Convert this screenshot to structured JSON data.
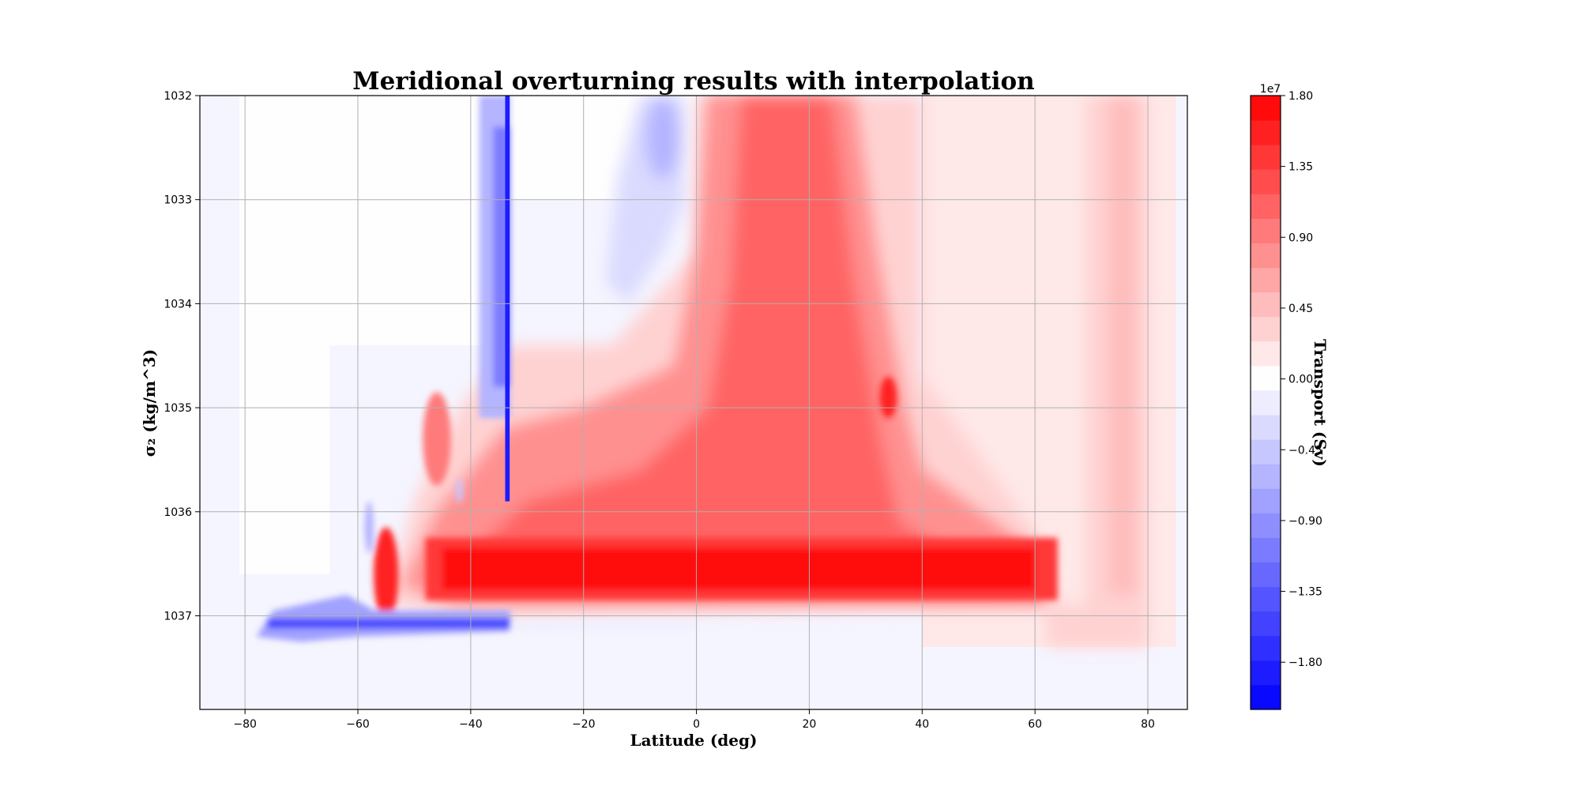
{
  "chart_data": {
    "type": "heatmap",
    "subtype": "filled-contour",
    "title": "Meridional overturning results with interpolation",
    "xlabel": "Latitude (deg)",
    "ylabel": "σ₂ (kg/m^3)",
    "xlim": [
      -88,
      87
    ],
    "ylim": [
      1037.9,
      1032.0
    ],
    "y_inverted": true,
    "x_ticks": [
      -80,
      -60,
      -40,
      -20,
      0,
      20,
      40,
      60,
      80
    ],
    "x_tick_labels": [
      "−80",
      "−60",
      "−40",
      "−20",
      "0",
      "20",
      "40",
      "60",
      "80"
    ],
    "y_ticks": [
      1032,
      1033,
      1034,
      1035,
      1036,
      1037
    ],
    "y_tick_labels": [
      "1032",
      "1033",
      "1034",
      "1035",
      "1036",
      "1037"
    ],
    "grid": true,
    "colormap": "bwr",
    "colorbar": {
      "label": "Transport (Sv)",
      "multiplier": "1e7",
      "min": -2.1,
      "max": 1.8,
      "levels": 25,
      "ticks": [
        1.8,
        1.35,
        0.9,
        0.45,
        0.0,
        -0.45,
        -0.9,
        -1.35,
        -1.8
      ],
      "tick_labels": [
        "1.80",
        "1.35",
        "0.90",
        "0.45",
        "0.00",
        "−0.45",
        "−0.90",
        "−1.35",
        "−1.80"
      ]
    },
    "features": [
      {
        "name": "southern-deep-blue-cell",
        "lat": [
          -78,
          -33
        ],
        "sigma2": [
          1036.9,
          1037.15
        ],
        "value": -1.6
      },
      {
        "name": "southern-vertical-blue-band",
        "lat": [
          -35,
          -33
        ],
        "sigma2": [
          1032.0,
          1036.0
        ],
        "value": -1.8
      },
      {
        "name": "main-red-cell",
        "lat": [
          0,
          64
        ],
        "sigma2": [
          1032.0,
          1037.0
        ],
        "value": 1.5
      },
      {
        "name": "max-red-core",
        "lat": [
          -45,
          60
        ],
        "sigma2": [
          1036.3,
          1036.8
        ],
        "value": 1.7
      },
      {
        "name": "upper-blue-pocket",
        "lat": [
          -16,
          -2
        ],
        "sigma2": [
          1032.0,
          1033.8
        ],
        "value": -0.7
      },
      {
        "name": "northern-weak-red-band",
        "lat": [
          70,
          80
        ],
        "sigma2": [
          1032.0,
          1037.3
        ],
        "value": 0.45
      }
    ]
  }
}
